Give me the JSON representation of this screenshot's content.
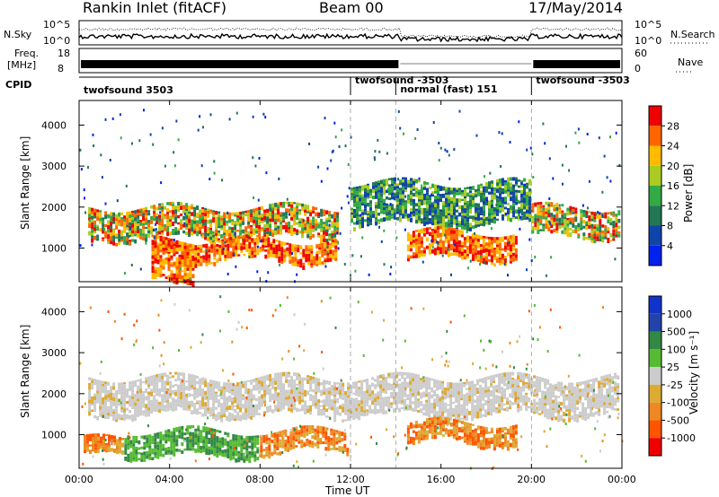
{
  "header": {
    "radar_title": "Rankin Inlet (fitACF)",
    "beam": "Beam 00",
    "date": "17/May/2014"
  },
  "summary_panel": {
    "nsky_label": "N.Sky",
    "nsky_ticks": [
      "10^5",
      "10^0"
    ],
    "nsearch_label": "N.Search",
    "nsearch_ticks": [
      "10^5",
      "10^0"
    ],
    "freq_label": "Freq.",
    "freq_unit": "[MHz]",
    "freq_ticks": [
      "18",
      "8"
    ],
    "nave_label": "Nave",
    "nave_ticks": [
      "60",
      "0"
    ],
    "cpid_label": "CPID"
  },
  "cpid_segments": [
    {
      "label": "twofsound 3503",
      "start_hour": 0
    },
    {
      "label": "twofsound -3503",
      "start_hour": 12
    },
    {
      "label": "normal (fast) 151",
      "start_hour": 14
    },
    {
      "label": "twofsound -3503",
      "start_hour": 20
    }
  ],
  "x_axis": {
    "title": "Time UT",
    "ticks": [
      "00:00",
      "04:00",
      "08:00",
      "12:00",
      "16:00",
      "20:00",
      "00:00"
    ]
  },
  "colors": {
    "power_scale": [
      "#0022ee",
      "#1144aa",
      "#227755",
      "#33aa44",
      "#aacc22",
      "#ffbb00",
      "#ff6600",
      "#ee0000"
    ],
    "velocity_scale": [
      "#ee0000",
      "#ff5500",
      "#ee8822",
      "#ddaa33",
      "#cccccc",
      "#55bb33",
      "#338844",
      "#2244aa",
      "#1133cc"
    ]
  },
  "chart_data": [
    {
      "type": "heatmap",
      "title": "",
      "ylabel": "Slant Range [km]",
      "xlabel": "",
      "xlim": [
        0,
        24
      ],
      "ylim": [
        180,
        4600
      ],
      "y_ticks": [
        "1000",
        "2000",
        "3000",
        "4000"
      ],
      "colorbar_label": "Power [dB]",
      "colorbar_ticks": [
        "28",
        "24",
        "20",
        "16",
        "12",
        "8",
        "4"
      ],
      "backscatter_bands": [
        {
          "x": [
            0.4,
            11.5
          ],
          "y": [
            1250,
            2000
          ],
          "level": "16-28 dB"
        },
        {
          "x": [
            4.5,
            11.5
          ],
          "y": [
            700,
            1200
          ],
          "level": "20-28 dB"
        },
        {
          "x": [
            12,
            20
          ],
          "y": [
            1600,
            2600
          ],
          "level": "8-16 dB"
        },
        {
          "x": [
            14.5,
            19.5
          ],
          "y": [
            750,
            1400
          ],
          "level": "20-28 dB"
        },
        {
          "x": [
            20,
            24
          ],
          "y": [
            1300,
            2000
          ],
          "level": "12-24 dB"
        },
        {
          "x": [
            3.2,
            5.2
          ],
          "y": [
            200,
            1200
          ],
          "level": "24-28 dB"
        }
      ]
    },
    {
      "type": "heatmap",
      "title": "",
      "ylabel": "Slant Range [km]",
      "xlabel": "Time UT",
      "xlim": [
        0,
        24
      ],
      "ylim": [
        180,
        4600
      ],
      "y_ticks": [
        "1000",
        "2000",
        "3000",
        "4000"
      ],
      "colorbar_label": "Velocity [m s⁻¹]",
      "colorbar_ticks": [
        "1000",
        "500",
        "100",
        "25",
        "-25",
        "-100",
        "-500",
        "-1000"
      ],
      "backscatter_bands": [
        {
          "x": [
            0.4,
            24
          ],
          "y": [
            1500,
            2400
          ],
          "level": "-25 to 25 m/s"
        },
        {
          "x": [
            2,
            8
          ],
          "y": [
            500,
            1100
          ],
          "level": "100-500 m/s"
        },
        {
          "x": [
            8,
            12
          ],
          "y": [
            600,
            1100
          ],
          "level": "-500 to -100 m/s"
        },
        {
          "x": [
            14.5,
            19.5
          ],
          "y": [
            800,
            1300
          ],
          "level": "-500 to -100 m/s"
        },
        {
          "x": [
            0.2,
            2
          ],
          "y": [
            500,
            900
          ],
          "level": "-500 to -100 m/s"
        }
      ]
    }
  ]
}
